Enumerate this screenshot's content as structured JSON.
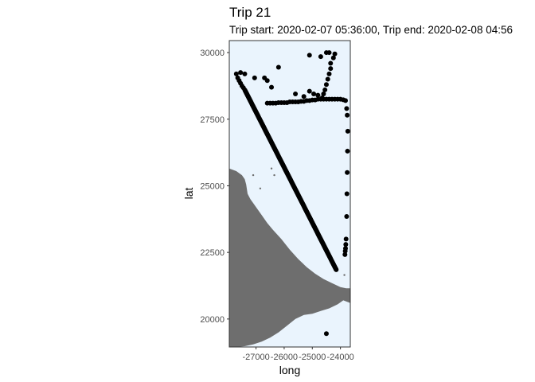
{
  "chart_data": {
    "type": "scatter",
    "title": "Trip 21",
    "subtitle": "Trip start: 2020-02-07 05:36:00, Trip end: 2020-02-08 04:56",
    "xlabel": "long",
    "ylabel": "lat",
    "xlim": [
      -27950,
      -23650
    ],
    "ylim": [
      18950,
      30450
    ],
    "x_ticks": [
      -27000,
      -26000,
      -25000,
      -24000
    ],
    "x_tick_labels": [
      "-27000",
      "-26000",
      "-25000",
      "-24000"
    ],
    "y_ticks": [
      20000,
      22500,
      25000,
      27500,
      30000
    ],
    "y_tick_labels": [
      "20000",
      "22500",
      "25000",
      "27500",
      "30000"
    ],
    "grid": false,
    "colors": {
      "panel_background": "#eaf4fd",
      "land": "#6e6e6e",
      "points": "#000000",
      "panel_border": "#333333",
      "tick_text": "#4d4d4d"
    },
    "track": {
      "from": [
        -27400,
        28600
      ],
      "to": [
        -24150,
        21850
      ],
      "n_points": 300
    },
    "points": [
      [
        -27700,
        29200
      ],
      [
        -27650,
        29050
      ],
      [
        -27600,
        28950
      ],
      [
        -27550,
        28850
      ],
      [
        -27500,
        28750
      ],
      [
        -27450,
        28680
      ],
      [
        -27550,
        29250
      ],
      [
        -27400,
        29200
      ],
      [
        -27050,
        29050
      ],
      [
        -26700,
        29050
      ],
      [
        -26600,
        28950
      ],
      [
        -26450,
        28700
      ],
      [
        -26200,
        29450
      ],
      [
        -26600,
        28100
      ],
      [
        -26500,
        28100
      ],
      [
        -26400,
        28100
      ],
      [
        -26300,
        28100
      ],
      [
        -26200,
        28120
      ],
      [
        -26100,
        28120
      ],
      [
        -26000,
        28120
      ],
      [
        -25900,
        28120
      ],
      [
        -25800,
        28150
      ],
      [
        -25700,
        28150
      ],
      [
        -25600,
        28150
      ],
      [
        -25500,
        28150
      ],
      [
        -25400,
        28170
      ],
      [
        -25300,
        28170
      ],
      [
        -25200,
        28200
      ],
      [
        -25100,
        28200
      ],
      [
        -25000,
        28220
      ],
      [
        -24900,
        28220
      ],
      [
        -24800,
        28250
      ],
      [
        -24700,
        28250
      ],
      [
        -24600,
        28250
      ],
      [
        -24500,
        28250
      ],
      [
        -24400,
        28250
      ],
      [
        -24300,
        28250
      ],
      [
        -24200,
        28250
      ],
      [
        -24100,
        28250
      ],
      [
        -24000,
        28250
      ],
      [
        -23900,
        28230
      ],
      [
        -23820,
        28200
      ],
      [
        -25600,
        28450
      ],
      [
        -25300,
        28350
      ],
      [
        -25100,
        28550
      ],
      [
        -24950,
        28450
      ],
      [
        -24800,
        28400
      ],
      [
        -24650,
        28300
      ],
      [
        -24600,
        28450
      ],
      [
        -24550,
        28600
      ],
      [
        -24500,
        28800
      ],
      [
        -24450,
        29000
      ],
      [
        -24400,
        29200
      ],
      [
        -24350,
        29400
      ],
      [
        -24350,
        29600
      ],
      [
        -24250,
        29800
      ],
      [
        -24200,
        29950
      ],
      [
        -24500,
        30000
      ],
      [
        -24400,
        30000
      ],
      [
        -24700,
        29850
      ],
      [
        -25100,
        29900
      ],
      [
        -23780,
        27900
      ],
      [
        -23760,
        27650
      ],
      [
        -23740,
        27050
      ],
      [
        -23750,
        26300
      ],
      [
        -23760,
        25500
      ],
      [
        -23770,
        24700
      ],
      [
        -23780,
        23850
      ],
      [
        -23800,
        23000
      ],
      [
        -23810,
        22800
      ],
      [
        -23820,
        22650
      ],
      [
        -23830,
        22550
      ],
      [
        -23840,
        22420
      ],
      [
        -24500,
        19450
      ]
    ],
    "land_polygon": [
      [
        -27950,
        25650
      ],
      [
        -27700,
        25550
      ],
      [
        -27500,
        25400
      ],
      [
        -27400,
        25250
      ],
      [
        -27350,
        25050
      ],
      [
        -27300,
        24700
      ],
      [
        -27200,
        24500
      ],
      [
        -27000,
        24200
      ],
      [
        -26800,
        23900
      ],
      [
        -26600,
        23600
      ],
      [
        -26400,
        23350
      ],
      [
        -26100,
        23000
      ],
      [
        -25800,
        22600
      ],
      [
        -25500,
        22250
      ],
      [
        -25200,
        21950
      ],
      [
        -24900,
        21700
      ],
      [
        -24600,
        21500
      ],
      [
        -24300,
        21350
      ],
      [
        -24000,
        21200
      ],
      [
        -23800,
        21150
      ],
      [
        -23650,
        21150
      ],
      [
        -23650,
        20600
      ],
      [
        -23900,
        20700
      ],
      [
        -24100,
        20550
      ],
      [
        -24400,
        20400
      ],
      [
        -24700,
        20300
      ],
      [
        -25000,
        20200
      ],
      [
        -25300,
        20150
      ],
      [
        -25600,
        20000
      ],
      [
        -25900,
        19750
      ],
      [
        -26200,
        19500
      ],
      [
        -26500,
        19300
      ],
      [
        -26800,
        19150
      ],
      [
        -27100,
        19050
      ],
      [
        -27400,
        18980
      ],
      [
        -27700,
        18950
      ],
      [
        -27950,
        18950
      ]
    ],
    "islets": [
      [
        -26450,
        25650
      ],
      [
        -26350,
        25400
      ],
      [
        -26850,
        24900
      ],
      [
        -27100,
        25400
      ],
      [
        -23860,
        21650
      ]
    ]
  }
}
